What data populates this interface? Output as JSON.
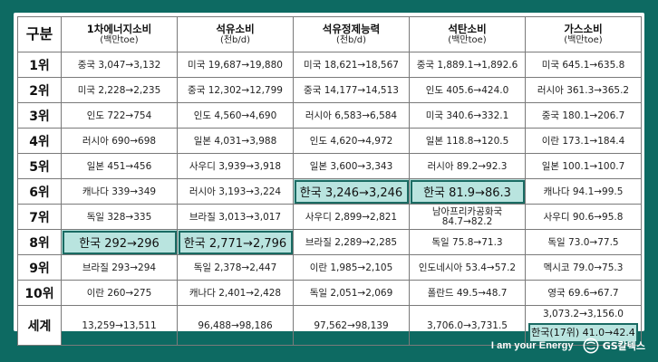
{
  "headers": [
    {
      "label": "구분",
      "unit": ""
    },
    {
      "label": "1차에너지소비",
      "unit": "(백만toe)"
    },
    {
      "label": "석유소비",
      "unit": "(천b/d)"
    },
    {
      "label": "석유정제능력",
      "unit": "(천b/d)"
    },
    {
      "label": "석탄소비",
      "unit": "(백만toe)"
    },
    {
      "label": "가스소비",
      "unit": "(백만toe)"
    }
  ],
  "rows": [
    {
      "rank": "1위",
      "cells": [
        "중국 3,047→3,132",
        "미국 19,687→19,880",
        "미국 18,621→18,567",
        "중국 1,889.1→1,892.6",
        "미국 645.1→635.8"
      ]
    },
    {
      "rank": "2위",
      "cells": [
        "미국 2,228→2,235",
        "중국 12,302→12,799",
        "중국 14,177→14,513",
        "인도 405.6→424.0",
        "러시아 361.3→365.2"
      ]
    },
    {
      "rank": "3위",
      "cells": [
        "인도 722→754",
        "인도 4,560→4,690",
        "러시아 6,583→6,584",
        "미국 340.6→332.1",
        "중국 180.1→206.7"
      ]
    },
    {
      "rank": "4위",
      "cells": [
        "러시아 690→698",
        "일본 4,031→3,988",
        "인도 4,620→4,972",
        "일본 118.8→120.5",
        "이란 173.1→184.4"
      ]
    },
    {
      "rank": "5위",
      "cells": [
        "일본 451→456",
        "사우디 3,939→3,918",
        "일본 3,600→3,343",
        "러시아 89.2→92.3",
        "일본 100.1→100.7"
      ]
    },
    {
      "rank": "6위",
      "cells": [
        "캐나다 339→349",
        "러시아 3,193→3,224",
        "한국 3,246→3,246",
        "한국 81.9→86.3",
        "캐나다 94.1→99.5"
      ]
    },
    {
      "rank": "7위",
      "cells": [
        "독일 328→335",
        "브라질 3,013→3,017",
        "사우디 2,899→2,821",
        "남아프리카공화국\n84.7→82.2",
        "사우디 90.6→95.8"
      ]
    },
    {
      "rank": "8위",
      "cells": [
        "한국 292→296",
        "한국 2,771→2,796",
        "브라질 2,289→2,285",
        "독일 75.8→71.3",
        "독일 73.0→77.5"
      ]
    },
    {
      "rank": "9위",
      "cells": [
        "브라질 293→294",
        "독일 2,378→2,447",
        "이란 1,985→2,105",
        "인도네시아 53.4→57.2",
        "멕시코 79.0→75.3"
      ]
    },
    {
      "rank": "10위",
      "cells": [
        "이란 260→275",
        "캐나다 2,401→2,428",
        "독일 2,051→2,069",
        "폴란드 49.5→48.7",
        "영국 69.6→67.7"
      ]
    }
  ],
  "total": {
    "label": "세계",
    "cells": [
      "13,259→13,511",
      "96,488→98,186",
      "97,562→98,139",
      "3,706.0→3,731.5"
    ],
    "gas_world": "3,073.2→3,156.0",
    "gas_korea": "한국(17위) 41.0→42.4"
  },
  "footer": {
    "slogan": "I am your Energy",
    "brand": "GS칼텍스"
  },
  "colors": {
    "background": "#0d6a62",
    "highlight_fill": "#b9e4df",
    "highlight_border": "#1a6b63"
  }
}
